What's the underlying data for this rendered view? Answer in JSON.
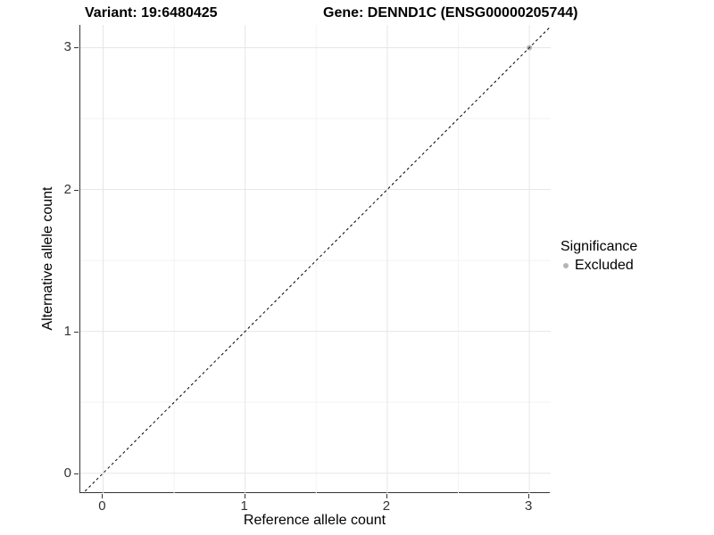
{
  "title": {
    "variant_label": "Variant: 19:6480425",
    "gene_label": "Gene: DENND1C (ENSG00000205744)"
  },
  "axes": {
    "x": {
      "label": "Reference allele count",
      "tick_labels": [
        "0",
        "1",
        "2",
        "3"
      ]
    },
    "y": {
      "label": "Alternative allele count",
      "tick_labels": [
        "0",
        "1",
        "2",
        "3"
      ]
    }
  },
  "legend": {
    "title": "Significance",
    "items": [
      {
        "label": "Excluded",
        "color": "#b5b5b5"
      }
    ]
  },
  "colors": {
    "background": "#ffffff",
    "axis_line": "#333333",
    "grid_major": "#e6e6e6",
    "grid_minor": "#f3f3f3",
    "reference_line": "#000000",
    "excluded_point": "#b5b5b5",
    "tick_text": "#333333"
  },
  "chart_data": {
    "type": "scatter",
    "title": "Variant: 19:6480425 | Gene: DENND1C (ENSG00000205744)",
    "xlabel": "Reference allele count",
    "ylabel": "Alternative allele count",
    "xlim": [
      -0.16,
      3.15
    ],
    "ylim": [
      -0.14,
      3.16
    ],
    "x_ticks": [
      0,
      1,
      2,
      3
    ],
    "y_ticks": [
      0,
      1,
      2,
      3
    ],
    "minor_ticks_x": [
      0.5,
      1.5,
      2.5
    ],
    "minor_ticks_y": [
      0.5,
      1.5,
      2.5
    ],
    "grid": "major+minor",
    "legend_position": "right",
    "series": [
      {
        "name": "Excluded",
        "marker_color": "#b5b5b5",
        "marker_radius_px": 3,
        "points": [
          [
            3,
            3
          ]
        ]
      }
    ],
    "reference_line": {
      "kind": "identity y = x",
      "slope": 1,
      "intercept": 0,
      "line_style": "dashed",
      "color": "#000000"
    }
  }
}
